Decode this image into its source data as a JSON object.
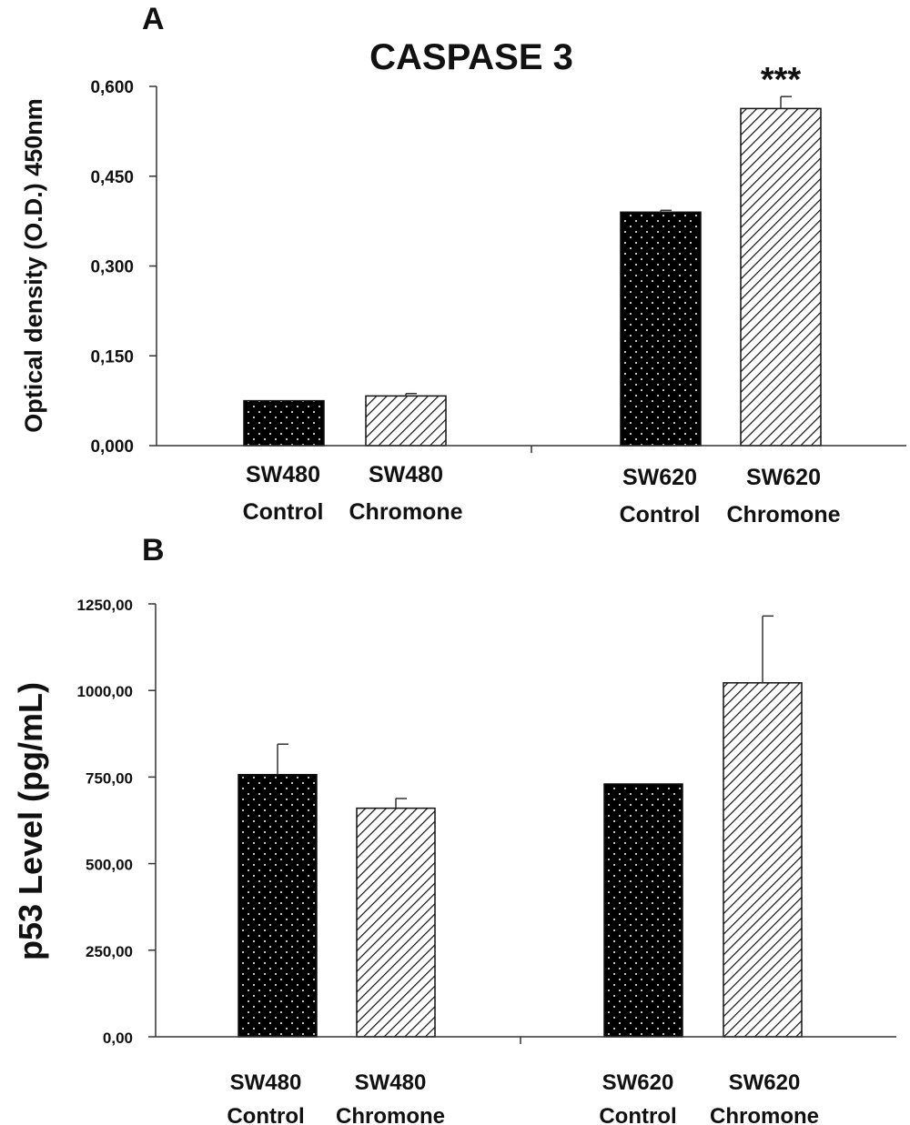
{
  "chart_data": [
    {
      "panel": "A",
      "type": "bar",
      "title": "CASPASE 3",
      "xlabel": "",
      "ylabel": "Optical density (O.D.) 450nm",
      "ylim": [
        0,
        0.6
      ],
      "yticks": [
        "0,000",
        "0,150",
        "0,300",
        "0,450",
        "0,600"
      ],
      "grid": false,
      "categories": [
        {
          "line1": "SW480",
          "line2": "Control"
        },
        {
          "line1": "SW480",
          "line2": "Chromone"
        },
        {
          "line1": "SW620",
          "line2": "Control"
        },
        {
          "line1": "SW620",
          "line2": "Chromone"
        }
      ],
      "values": [
        0.075,
        0.083,
        0.39,
        0.563
      ],
      "errors": [
        0.0,
        0.004,
        0.003,
        0.02
      ],
      "fills": [
        "dotted-black",
        "hatched",
        "dotted-black",
        "hatched"
      ],
      "annotations": [
        {
          "category_index": 3,
          "text": "***"
        }
      ]
    },
    {
      "panel": "B",
      "type": "bar",
      "title": "",
      "xlabel": "",
      "ylabel": "p53 Level (pg/mL)",
      "ylim": [
        0,
        1250
      ],
      "yticks": [
        "0,00",
        "250,00",
        "500,00",
        "750,00",
        "1000,00",
        "1250,00"
      ],
      "grid": false,
      "categories": [
        {
          "line1": "SW480",
          "line2": "Control"
        },
        {
          "line1": "SW480",
          "line2": "Chromone"
        },
        {
          "line1": "SW620",
          "line2": "Control"
        },
        {
          "line1": "SW620",
          "line2": "Chromone"
        }
      ],
      "values": [
        757,
        660,
        730,
        1022
      ],
      "errors": [
        88,
        28,
        0,
        193
      ],
      "fills": [
        "dotted-black",
        "hatched",
        "dotted-black",
        "hatched"
      ],
      "annotations": []
    }
  ]
}
